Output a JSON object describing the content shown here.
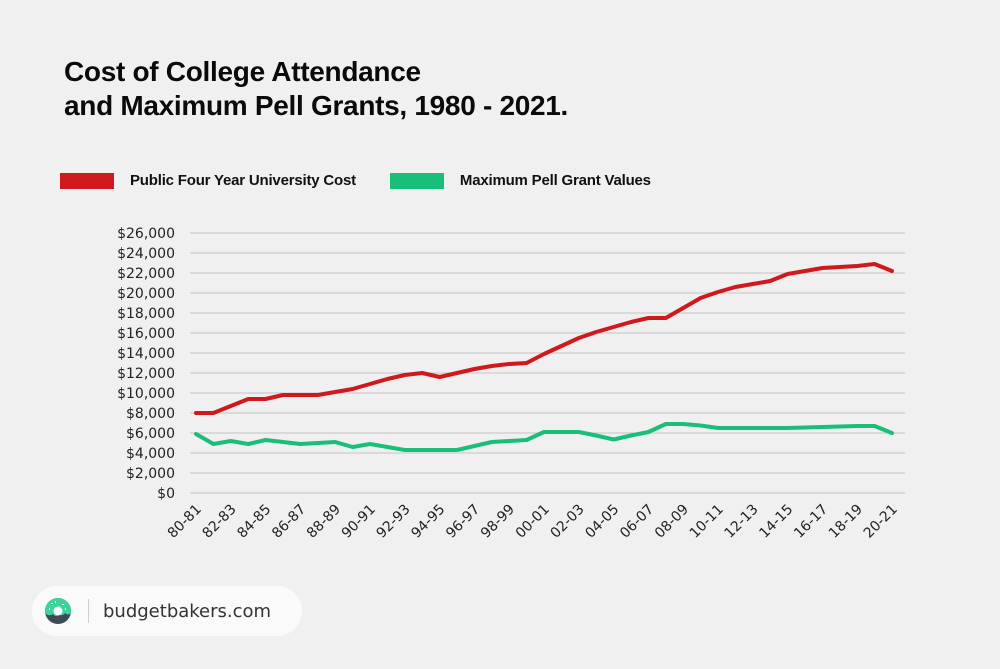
{
  "title_lines": [
    "Cost of College Attendance",
    "and Maximum Pell Grants, 1980 - 2021."
  ],
  "footer": {
    "site": "budgetbakers.com",
    "logo_icon": "donut-icon"
  },
  "chart_data": {
    "type": "line",
    "title": "Cost of College Attendance and Maximum Pell Grants, 1980 - 2021.",
    "xlabel": "",
    "ylabel": "",
    "ylim": [
      0,
      26000
    ],
    "yticks": [
      0,
      2000,
      4000,
      6000,
      8000,
      10000,
      12000,
      14000,
      16000,
      18000,
      20000,
      22000,
      24000,
      26000
    ],
    "ytick_labels": [
      "$0",
      "$2,000",
      "$4,000",
      "$6,000",
      "$8,000",
      "$10,000",
      "$12,000",
      "$14,000",
      "$16,000",
      "$18,000",
      "$20,000",
      "$22,000",
      "$24,000",
      "$26,000"
    ],
    "grid": true,
    "legend_position": "top-left",
    "x": [
      "80-81",
      "81-82",
      "82-83",
      "83-84",
      "84-85",
      "85-86",
      "86-87",
      "87-88",
      "88-89",
      "89-90",
      "90-91",
      "91-92",
      "92-93",
      "93-94",
      "94-95",
      "95-96",
      "96-97",
      "97-98",
      "98-99",
      "99-00",
      "00-01",
      "01-02",
      "02-03",
      "03-04",
      "04-05",
      "05-06",
      "06-07",
      "07-08",
      "08-09",
      "09-10",
      "10-11",
      "11-12",
      "12-13",
      "13-14",
      "14-15",
      "15-16",
      "16-17",
      "17-18",
      "18-19",
      "19-20",
      "20-21"
    ],
    "xtick_labels": [
      "80-81",
      "82-83",
      "84-85",
      "86-87",
      "88-89",
      "90-91",
      "92-93",
      "94-95",
      "96-97",
      "98-99",
      "00-01",
      "02-03",
      "04-05",
      "06-07",
      "08-09",
      "10-11",
      "12-13",
      "14-15",
      "16-17",
      "18-19",
      "20-21"
    ],
    "series": [
      {
        "name": "Public Four Year University Cost",
        "color": "#d0191c",
        "values": [
          8000,
          8000,
          8700,
          9400,
          9400,
          9800,
          9800,
          9800,
          10100,
          10400,
          10900,
          11400,
          11800,
          12000,
          11600,
          12000,
          12400,
          12700,
          12900,
          13000,
          13900,
          14700,
          15500,
          16100,
          16600,
          17100,
          17500,
          17500,
          18500,
          19500,
          20100,
          20600,
          20900,
          21200,
          21900,
          22200,
          22500,
          22600,
          22700,
          22900,
          22200
        ]
      },
      {
        "name": "Maximum Pell Grant Values",
        "color": "#19bf79",
        "values": [
          5900,
          4900,
          5200,
          4900,
          5300,
          5100,
          4900,
          5000,
          5100,
          4600,
          4900,
          4600,
          4300,
          4300,
          4300,
          4300,
          4700,
          5100,
          5200,
          5300,
          6100,
          6100,
          6100,
          5750,
          5350,
          5750,
          6100,
          6900,
          6900,
          6750,
          6500,
          6500,
          6500,
          6500,
          6500,
          6550,
          6600,
          6650,
          6700,
          6700,
          6000
        ]
      }
    ]
  }
}
